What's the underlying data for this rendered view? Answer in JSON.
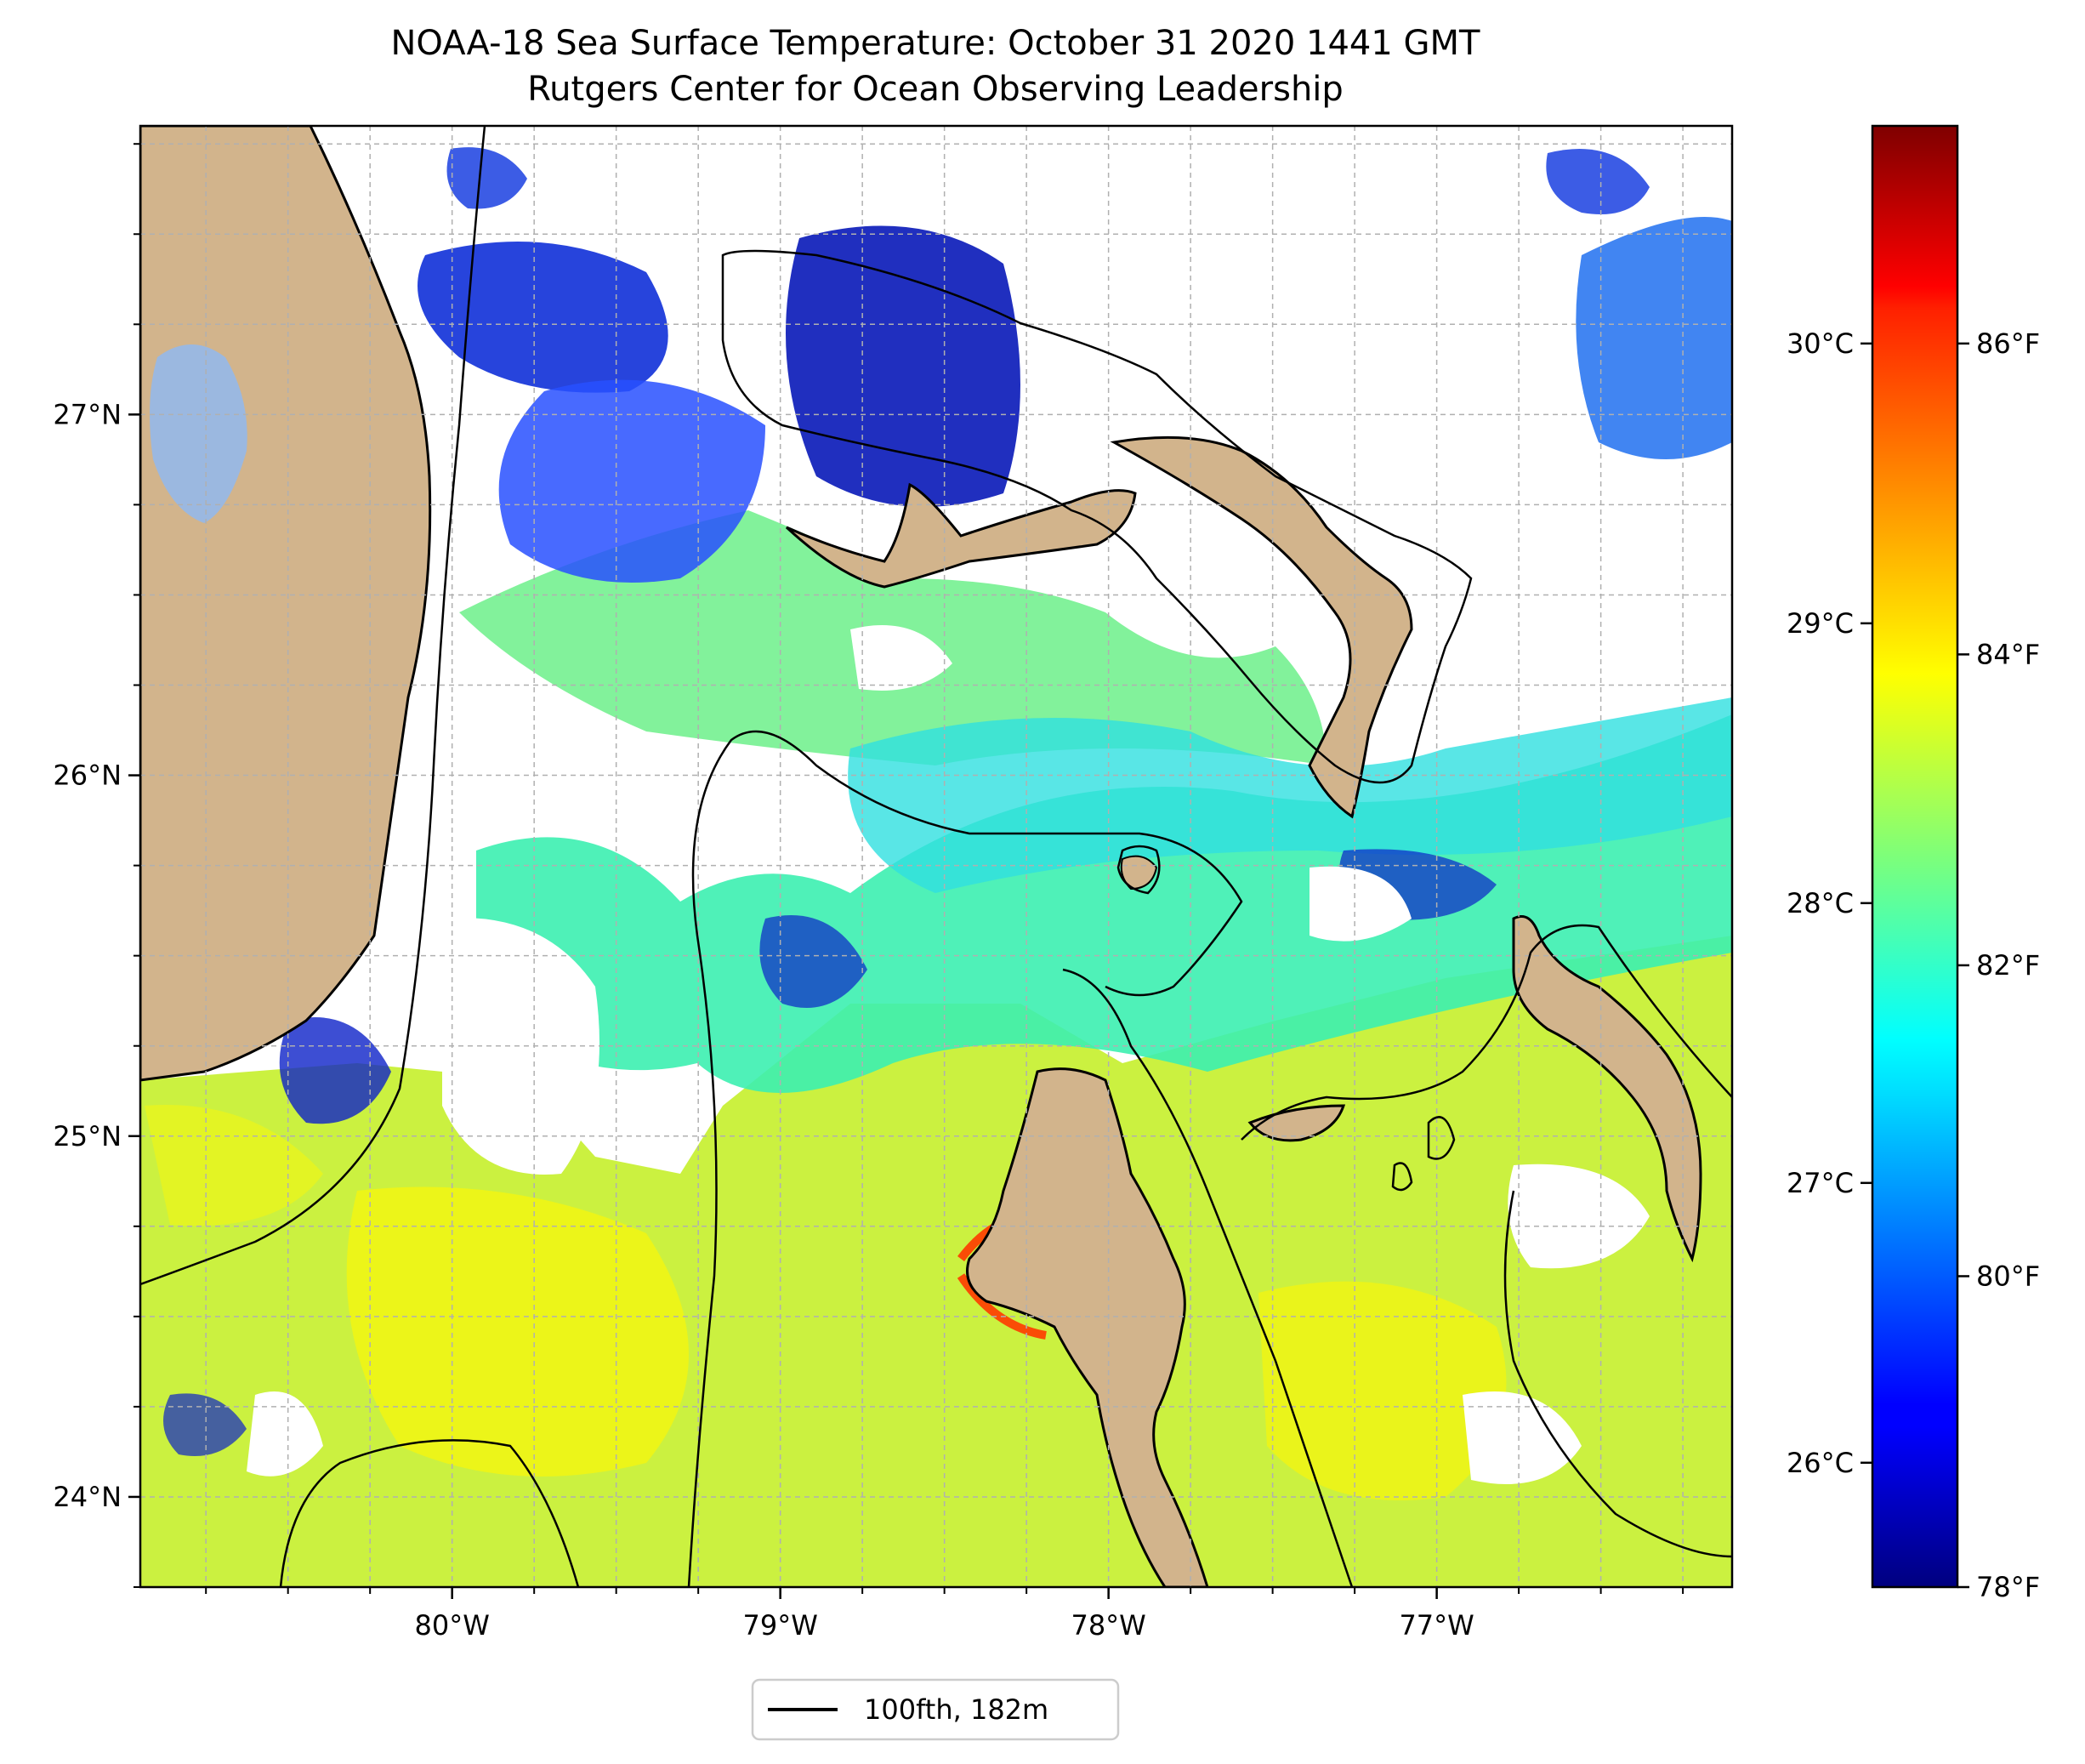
{
  "title": {
    "line1": "NOAA-18 Sea Surface Temperature: October 31 2020 1441 GMT",
    "line2": "Rutgers Center for Ocean Observing Leadership"
  },
  "map": {
    "lon_range": [
      -80.95,
      -76.1
    ],
    "lat_range": [
      23.75,
      27.8
    ],
    "lon_ticks": [
      {
        "value": -80,
        "label": "80°W"
      },
      {
        "value": -79,
        "label": "79°W"
      },
      {
        "value": -78,
        "label": "78°W"
      },
      {
        "value": -77,
        "label": "77°W"
      }
    ],
    "lat_ticks": [
      {
        "value": 27,
        "label": "27°N"
      },
      {
        "value": 26,
        "label": "26°N"
      },
      {
        "value": 25,
        "label": "25°N"
      },
      {
        "value": 24,
        "label": "24°N"
      }
    ],
    "grid": true,
    "colors": {
      "land": "#d2b48c",
      "lake": "#9bb8e0",
      "grid": "#b0b0b0",
      "contour": "#000000"
    }
  },
  "colorbar": {
    "colormap": "jet",
    "celsius_ticks": [
      {
        "value": 30,
        "label": "30°C"
      },
      {
        "value": 29,
        "label": "29°C"
      },
      {
        "value": 28,
        "label": "28°C"
      },
      {
        "value": 27,
        "label": "27°C"
      },
      {
        "value": 26,
        "label": "26°C"
      }
    ],
    "fahrenheit_ticks": [
      {
        "value": 86,
        "label": "86°F"
      },
      {
        "value": 84,
        "label": "84°F"
      },
      {
        "value": 82,
        "label": "82°F"
      },
      {
        "value": 80,
        "label": "80°F"
      },
      {
        "value": 78,
        "label": "78°F"
      }
    ],
    "range_f": [
      78,
      87.4
    ]
  },
  "legend": {
    "label": "100fth, 182m",
    "placement": "bottom-center"
  }
}
